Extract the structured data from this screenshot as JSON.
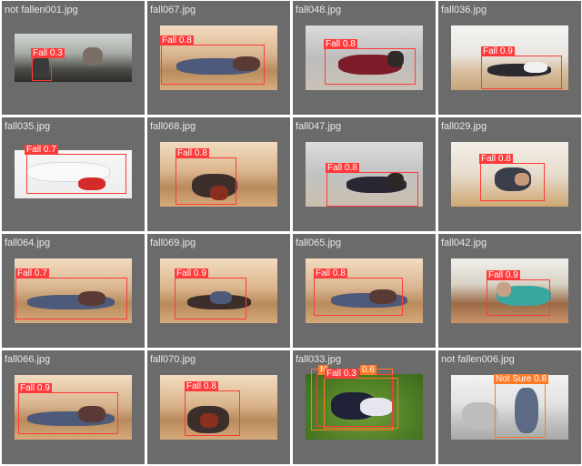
{
  "tiles": [
    {
      "file": "not fallen001.jpg",
      "det": [
        {
          "label": "Fall 0.3",
          "color": "#ff3a3a"
        }
      ]
    },
    {
      "file": "fall067.jpg",
      "det": [
        {
          "label": "Fall 0.8",
          "color": "#ff3a3a"
        }
      ]
    },
    {
      "file": "fall048.jpg",
      "det": [
        {
          "label": "Fall 0.8",
          "color": "#ff3a3a"
        }
      ]
    },
    {
      "file": "fall036.jpg",
      "det": [
        {
          "label": "Fall 0.9",
          "color": "#ff3a3a"
        }
      ]
    },
    {
      "file": "fall035.jpg",
      "det": [
        {
          "label": "Fall 0.7",
          "color": "#ff3a3a"
        }
      ]
    },
    {
      "file": "fall068.jpg",
      "det": [
        {
          "label": "Fall 0.8",
          "color": "#ff3a3a"
        }
      ]
    },
    {
      "file": "fall047.jpg",
      "det": [
        {
          "label": "Fall 0.8",
          "color": "#ff3a3a"
        }
      ]
    },
    {
      "file": "fall029.jpg",
      "det": [
        {
          "label": "Fall 0.8",
          "color": "#ff3a3a"
        }
      ]
    },
    {
      "file": "fall064.jpg",
      "det": [
        {
          "label": "Fall 0.7",
          "color": "#ff3a3a"
        }
      ]
    },
    {
      "file": "fall069.jpg",
      "det": [
        {
          "label": "Fall 0.9",
          "color": "#ff3a3a"
        }
      ]
    },
    {
      "file": "fall065.jpg",
      "det": [
        {
          "label": "Fall 0.8",
          "color": "#ff3a3a"
        }
      ]
    },
    {
      "file": "fall042.jpg",
      "det": [
        {
          "label": "Fall 0.9",
          "color": "#ff3a3a"
        }
      ]
    },
    {
      "file": "fall066.jpg",
      "det": [
        {
          "label": "Fall 0.9",
          "color": "#ff3a3a"
        }
      ]
    },
    {
      "file": "fall070.jpg",
      "det": [
        {
          "label": "Fall 0.8",
          "color": "#ff3a3a"
        }
      ]
    },
    {
      "file": "fall033.jpg",
      "det": [
        {
          "label": "N",
          "color": "#ff7a26"
        },
        {
          "label": "Fall 0.3",
          "color": "#ff3a3a"
        },
        {
          "label": "0.6",
          "color": "#ff7a26"
        }
      ]
    },
    {
      "file": "not fallen006.jpg",
      "det": [
        {
          "label": "Not Sure 0.8",
          "color": "#ff7a26"
        }
      ]
    }
  ]
}
